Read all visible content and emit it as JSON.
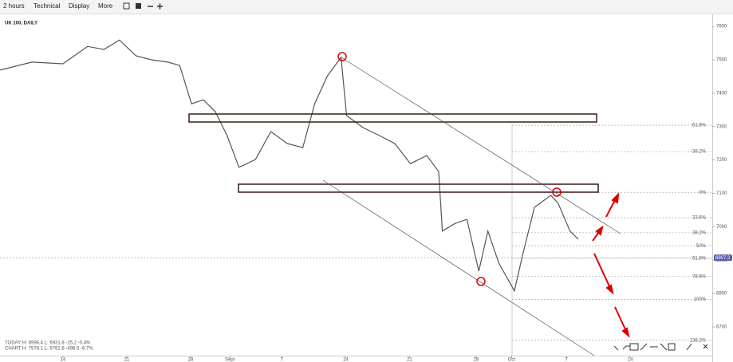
{
  "toolbar": [
    "2 hours",
    "Technical",
    "Display",
    "More"
  ],
  "info": {
    "today_label": "TODAY:",
    "today": "H: 6996.4  L: 6931.8  -25.2  -0.4%",
    "chart_label": "CHART:",
    "chart": "H: 7578.1  L: 6782.8  -498.5  -6.7%"
  },
  "chart_data": {
    "type": "line",
    "title": "UK 100, DAILY",
    "color": "#555555",
    "x": [
      -6.9,
      -3.4,
      0,
      2.7,
      4.5,
      6.2,
      8.0,
      9.7,
      11.5,
      12.8,
      14.1,
      15.4,
      16.7,
      18.0,
      19.3,
      21.1,
      22.8,
      24.6,
      26.3,
      27.6,
      29.0,
      30.5,
      31.1,
      32.9,
      34.7,
      36.4,
      38.1,
      39.9,
      41.2,
      41.6,
      43.0,
      44.3,
      45.6,
      46.6,
      47.8,
      49.5,
      50.4,
      51.7,
      53.5,
      54.3,
      55.6,
      56.5
    ],
    "values": [
      7469,
      7493,
      7488,
      7540,
      7531,
      7559,
      7512,
      7500,
      7493,
      7483,
      7368,
      7380,
      7345,
      7273,
      7178,
      7201,
      7285,
      7249,
      7237,
      7368,
      7452,
      7507,
      7333,
      7297,
      7273,
      7249,
      7189,
      7213,
      7165,
      6987,
      7010,
      7022,
      6867,
      6987,
      6891,
      6808,
      6915,
      7058,
      7094,
      7070,
      6987,
      6963
    ],
    "xlim": [
      -6.9,
      71.2
    ],
    "xticks": [
      {
        "value": 0,
        "label": "14"
      },
      {
        "value": 7,
        "label": "21"
      },
      {
        "value": 14,
        "label": "28"
      },
      {
        "value": 18.3,
        "label": "Sept"
      },
      {
        "value": 24,
        "label": "7"
      },
      {
        "value": 31,
        "label": "14"
      },
      {
        "value": 38,
        "label": "21"
      },
      {
        "value": 45.3,
        "label": "28"
      },
      {
        "value": 49.2,
        "label": "Oct"
      },
      {
        "value": 55.2,
        "label": "7"
      },
      {
        "value": 62.2,
        "label": "14"
      }
    ],
    "ylim": [
      6614,
      7636
    ],
    "yticks": [
      6700,
      6800,
      6900,
      7000,
      7100,
      7200,
      7300,
      7400,
      7500,
      7600
    ],
    "last_price": 6907.2,
    "fib_levels": [
      {
        "value": 7304,
        "label": "-61.8%"
      },
      {
        "value": 7225,
        "label": "-38.2%"
      },
      {
        "value": 7103,
        "label": "0%"
      },
      {
        "value": 7027,
        "label": "23.6%"
      },
      {
        "value": 6982,
        "label": "38.2%"
      },
      {
        "value": 6943,
        "label": "50%"
      },
      {
        "value": 6905,
        "label": "61.8%"
      },
      {
        "value": 6851,
        "label": "78.6%"
      },
      {
        "value": 6782,
        "label": "100%"
      },
      {
        "value": 6660,
        "label": "138.2%"
      }
    ]
  }
}
